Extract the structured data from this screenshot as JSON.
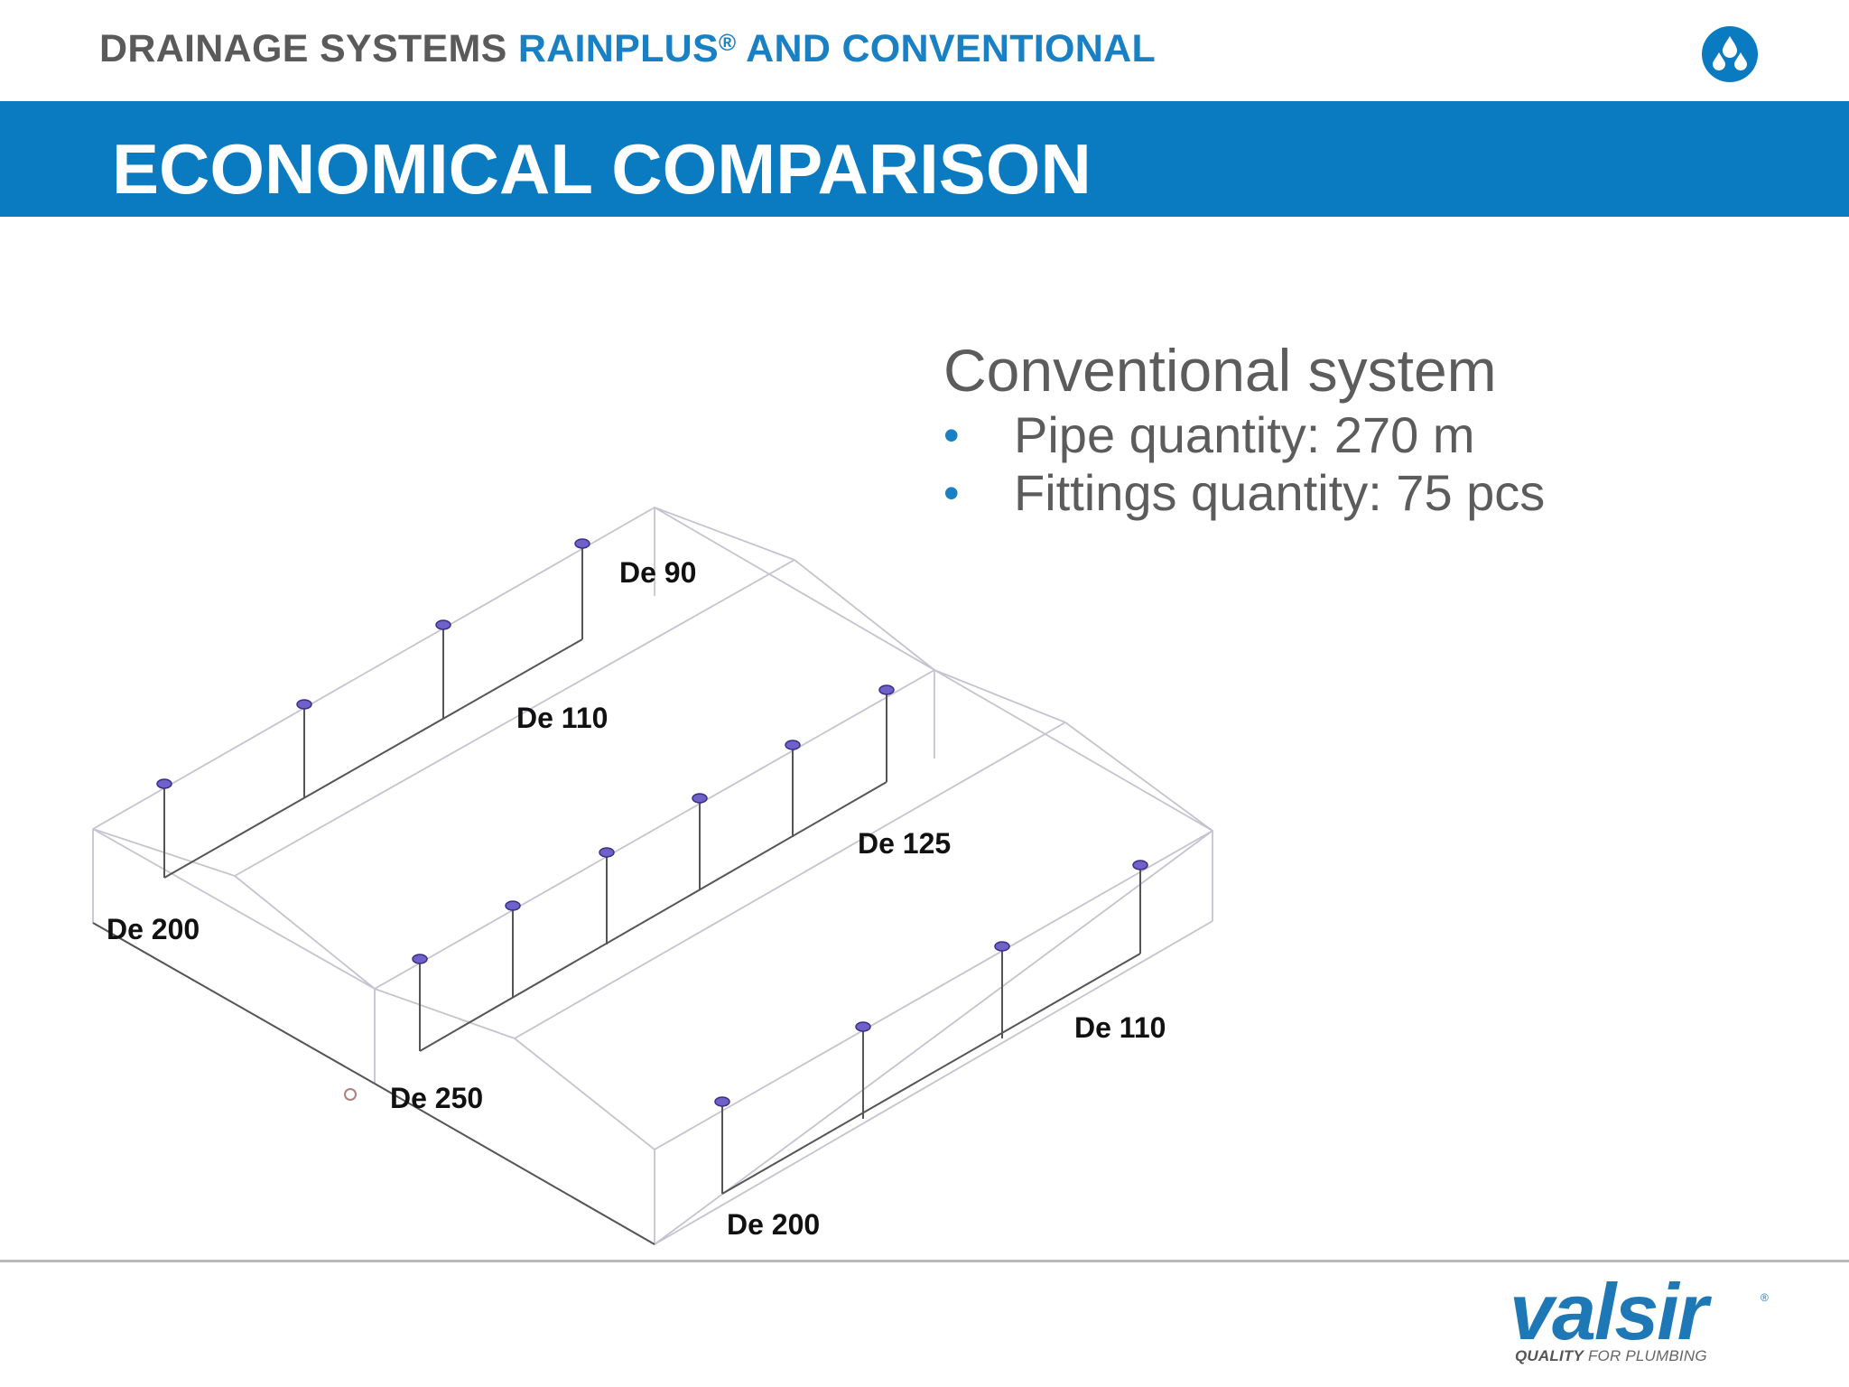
{
  "header": {
    "title_part1": "DRAINAGE SYSTEMS",
    "title_part2": "RAINPLUS",
    "title_reg": "®",
    "title_part3": "AND CONVENTIONAL",
    "logo_icon": "water-drops-icon"
  },
  "banner": {
    "title": "ECONOMICAL COMPARISON"
  },
  "info": {
    "heading": "Conventional system",
    "bullet_glyph": "•",
    "items": [
      {
        "label": "Pipe quantity: 270 m"
      },
      {
        "label": "Fittings quantity: 75 pcs"
      }
    ]
  },
  "diagram": {
    "labels": {
      "de90": "De 90",
      "de110_top": "De 110",
      "de125": "De 125",
      "de200_left": "De 200",
      "de250": "De 250",
      "de110_right": "De 110",
      "de200_bottom": "De 200"
    }
  },
  "brand": {
    "name": "valsir",
    "reg": "®",
    "tagline_bold": "QUALITY",
    "tagline_rest": " FOR PLUMBING"
  },
  "colors": {
    "accent": "#0a7bc1",
    "title_blue": "#1a80c4",
    "text_gray": "#5c5c5c",
    "wireframe": "#c4c4d0",
    "pipe": "#555555",
    "drain": "#4a3fa0"
  }
}
